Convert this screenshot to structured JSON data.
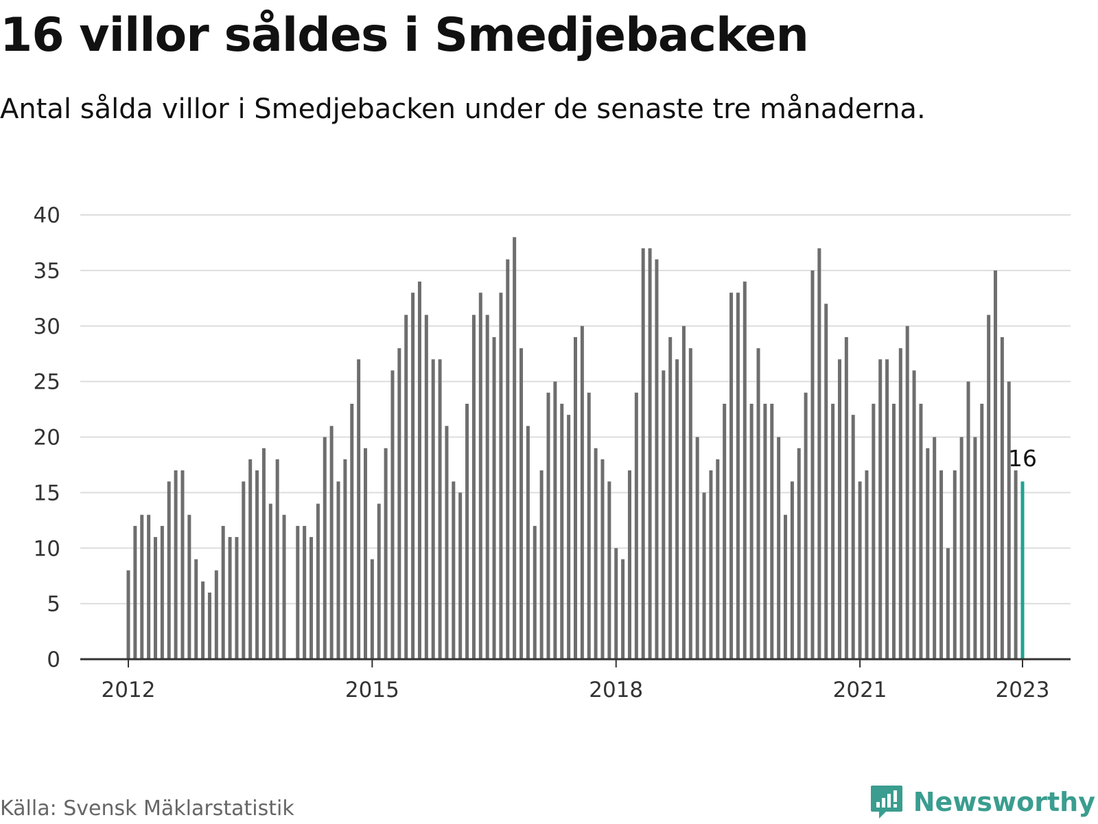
{
  "header": {
    "title": "16 villor såldes i Smedjebacken",
    "subtitle": "Antal sålda villor i Smedjebacken under de senaste tre månaderna."
  },
  "footer": {
    "source": "Källa: Svensk Mäklarstatistik",
    "brand": "Newsworthy",
    "brand_icon": "newsworthy-logo-icon"
  },
  "colors": {
    "bar": "#6e6e6e",
    "highlight": "#1fa295",
    "grid": "#dddddd",
    "axis": "#333333",
    "brand": "#3a9d8f"
  },
  "chart_data": {
    "type": "bar",
    "title": "16 villor såldes i Smedjebacken",
    "xlabel": "",
    "ylabel": "",
    "ylim": [
      0,
      40
    ],
    "yticks": [
      0,
      5,
      10,
      15,
      20,
      25,
      30,
      35,
      40
    ],
    "xticks": [
      "2012",
      "2015",
      "2018",
      "2021",
      "2023"
    ],
    "grid": true,
    "x_start": "2012-01",
    "x_end": "2023-01",
    "highlight_label": "16",
    "values": [
      8,
      12,
      13,
      13,
      11,
      12,
      16,
      17,
      17,
      13,
      9,
      7,
      6,
      8,
      12,
      11,
      11,
      16,
      18,
      17,
      19,
      14,
      18,
      13,
      null,
      12,
      12,
      11,
      14,
      20,
      21,
      16,
      18,
      23,
      27,
      19,
      9,
      14,
      19,
      26,
      28,
      31,
      33,
      34,
      31,
      27,
      27,
      21,
      16,
      15,
      23,
      31,
      33,
      31,
      29,
      33,
      36,
      38,
      28,
      21,
      12,
      17,
      24,
      25,
      23,
      22,
      29,
      30,
      24,
      19,
      18,
      16,
      10,
      9,
      17,
      24,
      37,
      37,
      36,
      26,
      29,
      27,
      30,
      28,
      20,
      15,
      17,
      18,
      23,
      33,
      33,
      34,
      23,
      28,
      23,
      23,
      20,
      13,
      16,
      19,
      24,
      35,
      37,
      32,
      23,
      27,
      29,
      22,
      16,
      17,
      23,
      27,
      27,
      23,
      28,
      30,
      26,
      23,
      19,
      20,
      17,
      10,
      17,
      20,
      25,
      20,
      23,
      31,
      35,
      29,
      25,
      17,
      16
    ]
  }
}
